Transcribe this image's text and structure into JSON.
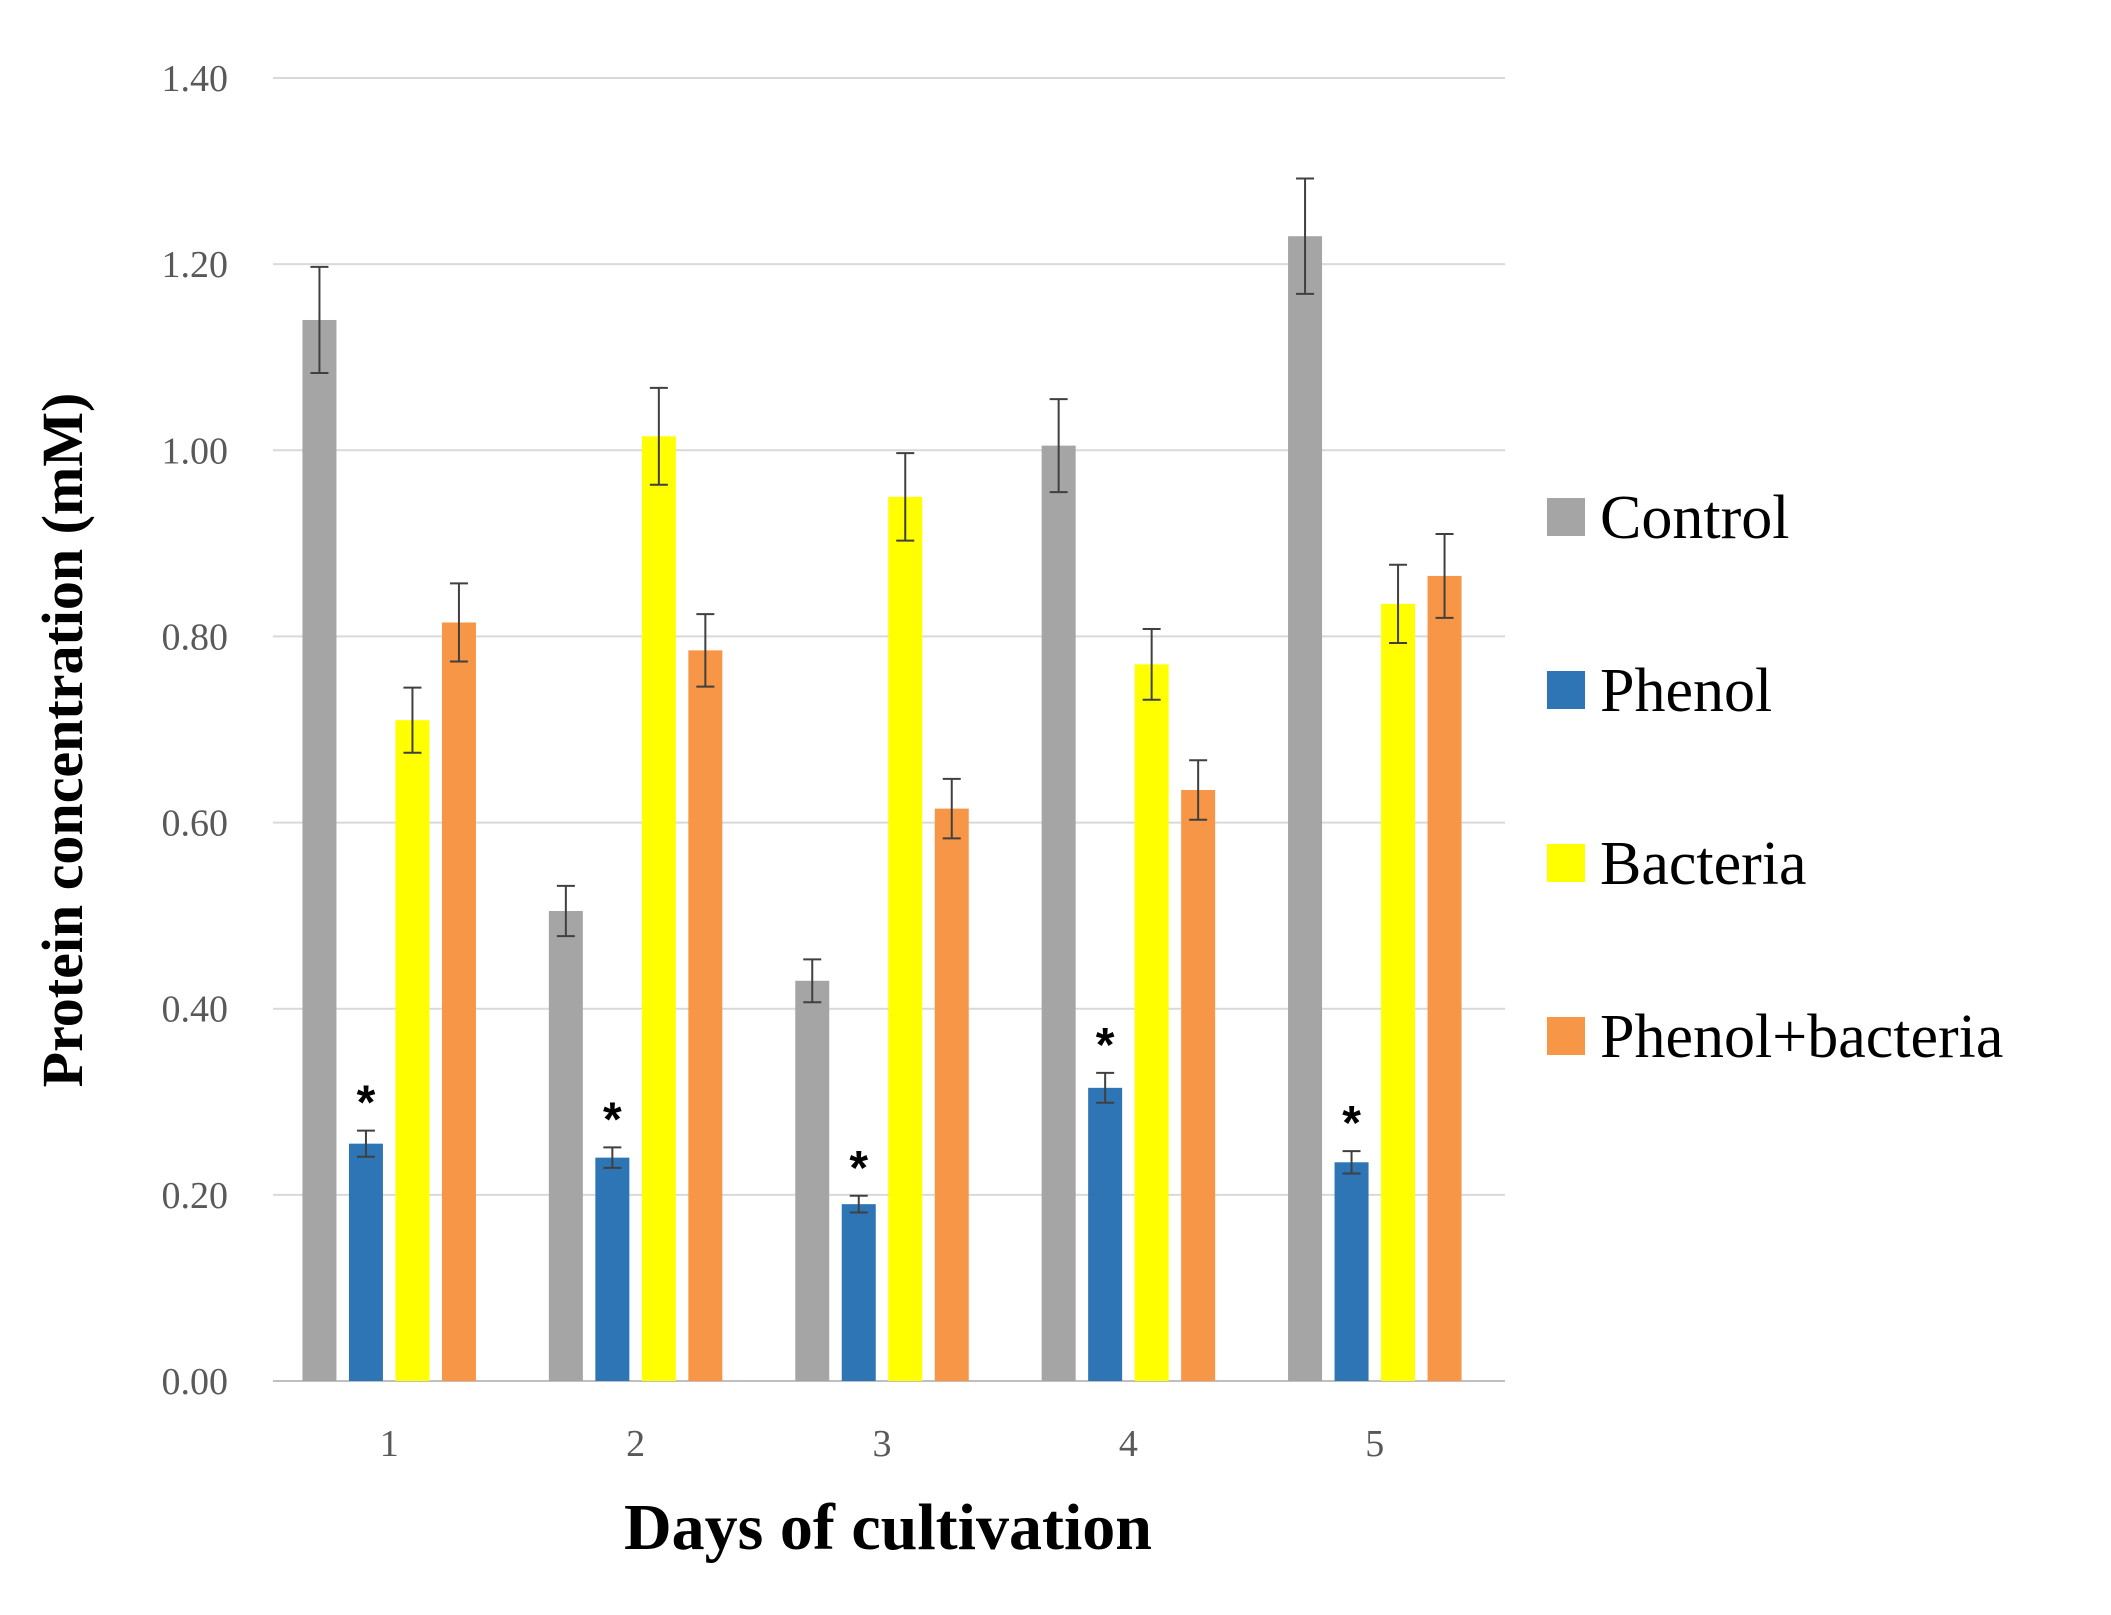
{
  "chart_data": {
    "type": "bar",
    "title": "",
    "xlabel": "Days of cultivation",
    "ylabel": "Protein concentration (mM)",
    "ylim": [
      0,
      1.4
    ],
    "yticks": [
      "0.00",
      "0.20",
      "0.40",
      "0.60",
      "0.80",
      "1.00",
      "1.20",
      "1.40"
    ],
    "grid": "horizontal",
    "legend_position": "right",
    "categories": [
      "1",
      "2",
      "3",
      "4",
      "5"
    ],
    "series": [
      {
        "name": "Control",
        "color": "#A5A5A5",
        "values": [
          1.14,
          0.505,
          0.43,
          1.005,
          1.23
        ],
        "errors": [
          0.057,
          0.027,
          0.023,
          0.05,
          0.062
        ],
        "significance": [
          "",
          "",
          "",
          "",
          ""
        ]
      },
      {
        "name": "Phenol",
        "color": "#2E75B6",
        "values": [
          0.255,
          0.24,
          0.19,
          0.315,
          0.235
        ],
        "errors": [
          0.014,
          0.011,
          0.009,
          0.016,
          0.012
        ],
        "significance": [
          "*",
          "*",
          "*",
          "*",
          "*"
        ]
      },
      {
        "name": "Bacteria",
        "color": "#FFFF00",
        "values": [
          0.71,
          1.015,
          0.95,
          0.77,
          0.835
        ],
        "errors": [
          0.035,
          0.052,
          0.047,
          0.038,
          0.042
        ],
        "significance": [
          "",
          "",
          "",
          "",
          ""
        ]
      },
      {
        "name": "Phenol+bacteria",
        "color": "#F79646",
        "values": [
          0.815,
          0.785,
          0.615,
          0.635,
          0.865
        ],
        "errors": [
          0.042,
          0.039,
          0.032,
          0.032,
          0.045
        ],
        "significance": [
          "",
          "",
          "",
          "",
          ""
        ]
      }
    ]
  }
}
